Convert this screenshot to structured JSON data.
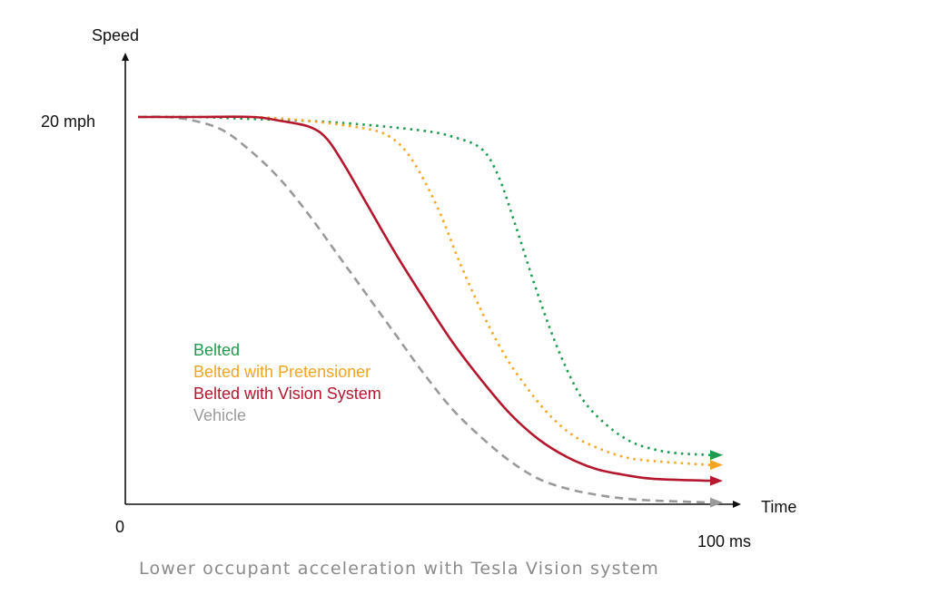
{
  "chart_data": {
    "type": "line",
    "ylabel": "Speed",
    "xlabel": "Time",
    "y_tick_label": "20 mph",
    "x_start_label": "0",
    "x_end_label": "100 ms",
    "caption": "Lower occupant acceleration with Tesla Vision system",
    "xlim": [
      0,
      100
    ],
    "ylim": [
      0,
      20
    ],
    "grid": false,
    "legend_position": "center-left",
    "series": [
      {
        "name": "Belted",
        "color": "#1f9b50",
        "style": "dotted",
        "x": [
          0,
          10,
          20,
          30,
          40,
          50,
          55,
          60,
          63,
          66,
          69,
          72,
          75,
          78,
          82,
          86,
          90,
          94,
          100
        ],
        "y": [
          20,
          20,
          19.9,
          19.8,
          19.6,
          19.3,
          19.0,
          18.4,
          17.0,
          14.5,
          11.8,
          9.3,
          7.2,
          5.6,
          4.4,
          3.6,
          3.2,
          3.0,
          2.9
        ]
      },
      {
        "name": "Belted with Pretensioner",
        "color": "#f5a524",
        "style": "dotted",
        "x": [
          0,
          10,
          20,
          30,
          40,
          44,
          47,
          50,
          53,
          56,
          60,
          64,
          68,
          72,
          76,
          80,
          85,
          90,
          100
        ],
        "y": [
          20,
          20,
          20,
          19.8,
          19.4,
          19.0,
          18.2,
          16.8,
          15.0,
          12.8,
          10.2,
          8.0,
          6.3,
          4.9,
          3.9,
          3.3,
          2.8,
          2.6,
          2.4
        ]
      },
      {
        "name": "Belted with Vision System",
        "color": "#b5172e",
        "style": "solid",
        "x": [
          0,
          10,
          20,
          25,
          30,
          33,
          36,
          40,
          45,
          50,
          55,
          60,
          65,
          70,
          75,
          80,
          85,
          90,
          100
        ],
        "y": [
          20,
          20,
          20,
          19.8,
          19.5,
          18.9,
          17.6,
          15.6,
          13.1,
          10.8,
          8.6,
          6.7,
          5.0,
          3.7,
          2.8,
          2.2,
          1.9,
          1.7,
          1.6
        ]
      },
      {
        "name": "Vehicle",
        "color": "#9a9a9a",
        "style": "dashed",
        "x": [
          0,
          5,
          10,
          15,
          20,
          25,
          30,
          35,
          40,
          45,
          50,
          55,
          60,
          65,
          70,
          75,
          80,
          85,
          90,
          100
        ],
        "y": [
          20,
          20,
          19.8,
          19.3,
          18.2,
          16.8,
          15.0,
          13.0,
          11.0,
          9.0,
          7.0,
          5.2,
          3.8,
          2.6,
          1.7,
          1.2,
          0.9,
          0.7,
          0.6,
          0.5
        ]
      }
    ]
  }
}
